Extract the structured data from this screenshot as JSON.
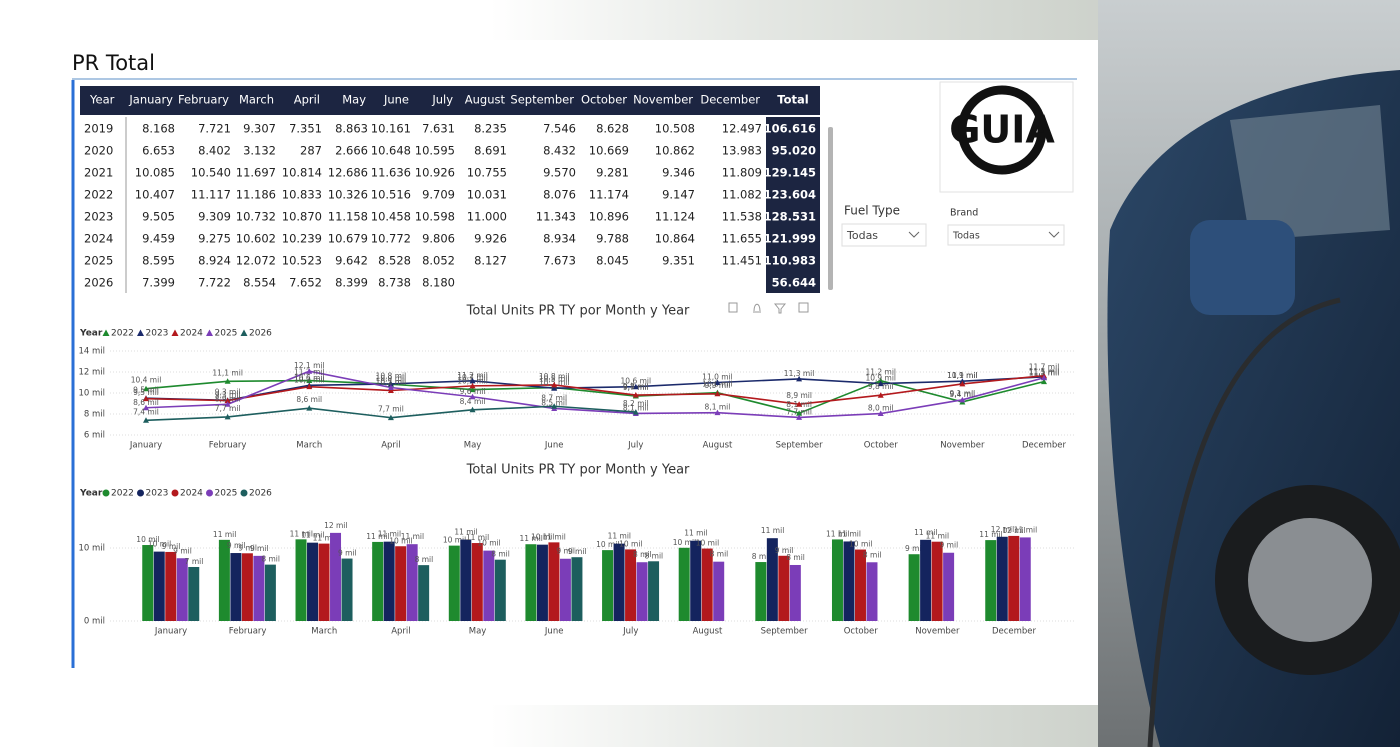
{
  "header": {
    "title": "PR Total"
  },
  "logo": {
    "text": "GUIA"
  },
  "slicers": [
    {
      "label": "Fuel Type",
      "value": "Todas"
    },
    {
      "label": "Brand",
      "value": "Todas"
    }
  ],
  "table": {
    "columns": [
      "Year",
      "January",
      "February",
      "March",
      "April",
      "May",
      "June",
      "July",
      "August",
      "September",
      "October",
      "November",
      "December",
      "Total"
    ],
    "rows": [
      [
        "2019",
        "8.168",
        "7.721",
        "9.307",
        "7.351",
        "8.863",
        "10.161",
        "7.631",
        "8.235",
        "7.546",
        "8.628",
        "10.508",
        "12.497",
        "106.616"
      ],
      [
        "2020",
        "6.653",
        "8.402",
        "3.132",
        "287",
        "2.666",
        "10.648",
        "10.595",
        "8.691",
        "8.432",
        "10.669",
        "10.862",
        "13.983",
        "95.020"
      ],
      [
        "2021",
        "10.085",
        "10.540",
        "11.697",
        "10.814",
        "12.686",
        "11.636",
        "10.926",
        "10.755",
        "9.570",
        "9.281",
        "9.346",
        "11.809",
        "129.145"
      ],
      [
        "2022",
        "10.407",
        "11.117",
        "11.186",
        "10.833",
        "10.326",
        "10.516",
        "9.709",
        "10.031",
        "8.076",
        "11.174",
        "9.147",
        "11.082",
        "123.604"
      ],
      [
        "2023",
        "9.505",
        "9.309",
        "10.732",
        "10.870",
        "11.158",
        "10.458",
        "10.598",
        "11.000",
        "11.343",
        "10.896",
        "11.124",
        "11.538",
        "128.531"
      ],
      [
        "2024",
        "9.459",
        "9.275",
        "10.602",
        "10.239",
        "10.679",
        "10.772",
        "9.806",
        "9.926",
        "8.934",
        "9.788",
        "10.864",
        "11.655",
        "121.999"
      ],
      [
        "2025",
        "8.595",
        "8.924",
        "12.072",
        "10.523",
        "9.642",
        "8.528",
        "8.052",
        "8.127",
        "7.673",
        "8.045",
        "9.351",
        "11.451",
        "110.983"
      ],
      [
        "2026",
        "7.399",
        "7.722",
        "8.554",
        "7.652",
        "8.399",
        "8.738",
        "8.180",
        null,
        null,
        null,
        null,
        null,
        "56.644"
      ]
    ]
  },
  "chart_data": [
    {
      "type": "line",
      "title": "Total Units PR TY por Month y Year",
      "legend_title": "Year",
      "legend_marker": "triangle",
      "grid": true,
      "categories": [
        "January",
        "February",
        "March",
        "April",
        "May",
        "June",
        "July",
        "August",
        "September",
        "October",
        "November",
        "December"
      ],
      "ylim": [
        6000,
        14000
      ],
      "yticks": [
        {
          "value": 6000,
          "label": "6 mil"
        },
        {
          "value": 8000,
          "label": "8 mil"
        },
        {
          "value": 10000,
          "label": "10 mil"
        },
        {
          "value": 12000,
          "label": "12 mil"
        },
        {
          "value": 14000,
          "label": "14 mil"
        }
      ],
      "series": [
        {
          "name": "2022",
          "color": "#1e8a2e",
          "values": [
            10407,
            11117,
            11186,
            10833,
            10326,
            10516,
            9709,
            10031,
            8076,
            11174,
            9147,
            11082
          ],
          "value_labels": [
            "10,4 mil",
            "11,1 mil",
            "11,2 mil",
            "10,8 mil",
            "10,3 mil",
            "10,5 mil",
            "9,7 mil",
            "10,0 mil",
            "8,1 mil",
            "11,2 mil",
            "9,1 mil",
            "11,1 mil"
          ]
        },
        {
          "name": "2023",
          "color": "#1b2a6b",
          "values": [
            9505,
            9309,
            10732,
            10870,
            11158,
            10458,
            10598,
            11000,
            11343,
            10896,
            11124,
            11538
          ],
          "value_labels": [
            "9,5 mil",
            "9,3 mil",
            "10,7 mil",
            "10,9 mil",
            "11,2 mil",
            "10,5 mil",
            "10,6 mil",
            "11,0 mil",
            "11,3 mil",
            "10,9 mil",
            "11,1 mil",
            "11,5 mil"
          ]
        },
        {
          "name": "2024",
          "color": "#b3191d",
          "values": [
            9459,
            9275,
            10602,
            10239,
            10679,
            10772,
            9806,
            9926,
            8934,
            9788,
            10864,
            11655
          ],
          "value_labels": [
            "9,5 mil",
            "9,3 mil",
            "10,6 mil",
            "10,2 mil",
            "10,7 mil",
            "10,8 mil",
            "9,8 mil",
            "9,9 mil",
            "8,9 mil",
            "9,8 mil",
            "10,9 mil",
            "11,7 mil"
          ]
        },
        {
          "name": "2025",
          "color": "#7b3db8",
          "values": [
            8595,
            8924,
            12072,
            10523,
            9642,
            8528,
            8052,
            8127,
            7673,
            8045,
            9351,
            11451
          ],
          "value_labels": [
            "8,6 mil",
            "8,9 mil",
            "12,1 mil",
            "10,5 mil",
            "9,6 mil",
            "8,5 mil",
            "8,1 mil",
            "8,1 mil",
            "7,7 mil",
            "8,0 mil",
            "9,4 mil",
            "11,5 mil"
          ]
        },
        {
          "name": "2026",
          "color": "#1d5e5e",
          "values": [
            7399,
            7722,
            8554,
            7652,
            8399,
            8738,
            8180,
            null,
            null,
            null,
            null,
            null
          ],
          "value_labels": [
            "7,4 mil",
            "7,7 mil",
            "8,6 mil",
            "7,7 mil",
            "8,4 mil",
            "8,7 mil",
            "8,2 mil",
            null,
            null,
            null,
            null,
            null
          ]
        }
      ]
    },
    {
      "type": "bar",
      "title": "Total Units PR TY por Month y Year",
      "legend_title": "Year",
      "legend_marker": "circle",
      "grid": true,
      "categories": [
        "January",
        "February",
        "March",
        "April",
        "May",
        "June",
        "July",
        "August",
        "September",
        "October",
        "November",
        "December"
      ],
      "ylim": [
        0,
        15000
      ],
      "yticks": [
        {
          "value": 0,
          "label": "0 mil"
        },
        {
          "value": 10000,
          "label": "10 mil"
        }
      ],
      "series": [
        {
          "name": "2022",
          "color": "#1e8a2e",
          "values": [
            10407,
            11117,
            11186,
            10833,
            10326,
            10516,
            9709,
            10031,
            8076,
            11174,
            9147,
            11082
          ],
          "value_labels": [
            "10 mil",
            "11 mil",
            "11 mil",
            "11 mil",
            "10 mil",
            "11 mil",
            "10 mil",
            "10 mil",
            "8 mil",
            "11 mil",
            "9 mil",
            "11 mil"
          ]
        },
        {
          "name": "2023",
          "color": "#14245e",
          "values": [
            9505,
            9309,
            10732,
            10870,
            11158,
            10458,
            10598,
            11000,
            11343,
            10896,
            11124,
            11538
          ],
          "value_labels": [
            "10 mil",
            "9 mil",
            "11 mil",
            "11 mil",
            "11 mil",
            "10 mil",
            "11 mil",
            "11 mil",
            "11 mil",
            "11 mil",
            "11 mil",
            "12 mil"
          ]
        },
        {
          "name": "2024",
          "color": "#b3191d",
          "values": [
            9459,
            9275,
            10602,
            10239,
            10679,
            10772,
            9806,
            9926,
            8934,
            9788,
            10864,
            11655
          ],
          "value_labels": [
            "9 mil",
            "9 mil",
            "11 mil",
            "10 mil",
            "11 mil",
            "11 mil",
            "10 mil",
            "10 mil",
            "9 mil",
            "10 mil",
            "11 mil",
            "12 mil"
          ]
        },
        {
          "name": "2025",
          "color": "#7b3db8",
          "values": [
            8595,
            8924,
            12072,
            10523,
            9642,
            8528,
            8052,
            8127,
            7673,
            8045,
            9351,
            11451
          ],
          "value_labels": [
            "9 mil",
            "9 mil",
            "12 mil",
            "11 mil",
            "10 mil",
            "9 mil",
            "8 mil",
            "8 mil",
            "8 mil",
            "8 mil",
            "9 mil",
            "11 mil"
          ]
        },
        {
          "name": "2026",
          "color": "#1d5e5e",
          "values": [
            7399,
            7722,
            8554,
            7652,
            8399,
            8738,
            8180,
            null,
            null,
            null,
            null,
            null
          ],
          "value_labels": [
            "7 mil",
            "8 mil",
            "9 mil",
            "8 mil",
            "8 mil",
            "9 mil",
            "8 mil",
            null,
            null,
            null,
            null,
            null
          ]
        }
      ]
    }
  ]
}
